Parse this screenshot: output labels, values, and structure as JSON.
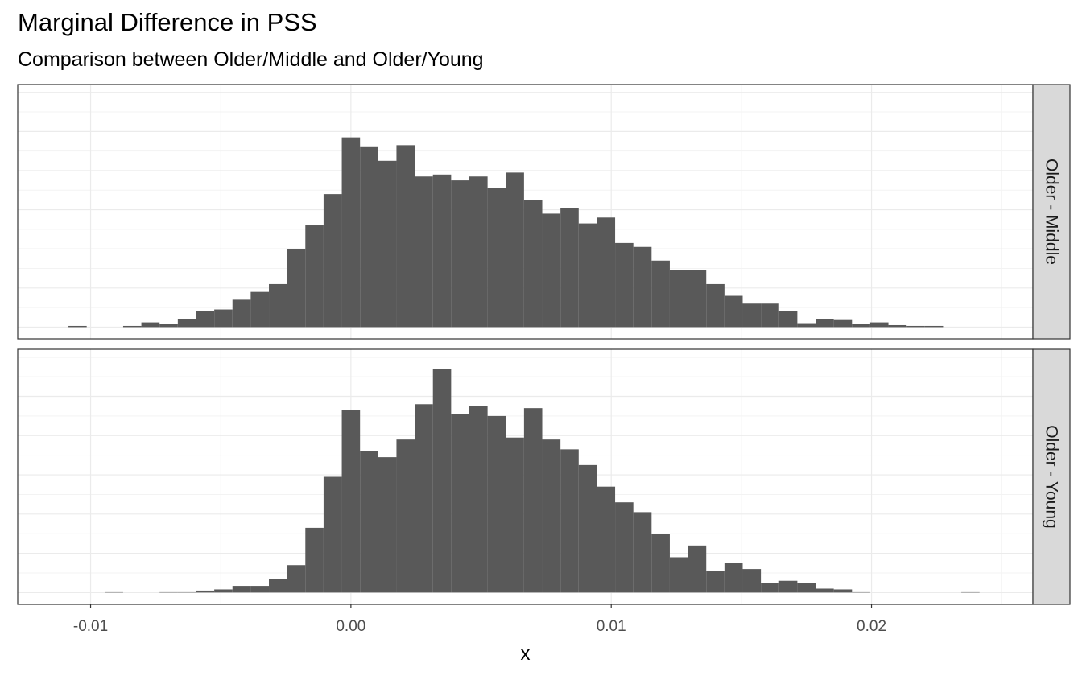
{
  "chart_data": {
    "type": "bar",
    "title": "Marginal Difference in PSS",
    "subtitle": "Comparison between Older/Middle and Older/Young",
    "xlabel": "x",
    "ylabel": "",
    "xlim": [
      -0.0128,
      0.0262
    ],
    "xticks": [
      -0.01,
      0.0,
      0.01,
      0.02
    ],
    "xtick_labels": [
      "-0.01",
      "0.00",
      "0.01",
      "0.02"
    ],
    "y_axis_labels_shown": false,
    "grid": true,
    "bin_width": 0.0007,
    "panels": [
      {
        "facet_label": "Older - Middle",
        "ylim": [
          -3,
          62
        ],
        "bins": [
          {
            "x": -0.0105,
            "count": 0.3
          },
          {
            "x": -0.0084,
            "count": 0.3
          },
          {
            "x": -0.0077,
            "count": 1.2
          },
          {
            "x": -0.007,
            "count": 0.9
          },
          {
            "x": -0.0063,
            "count": 2.0
          },
          {
            "x": -0.0056,
            "count": 4.0
          },
          {
            "x": -0.0049,
            "count": 4.5
          },
          {
            "x": -0.0042,
            "count": 7.0
          },
          {
            "x": -0.0035,
            "count": 9.0
          },
          {
            "x": -0.0028,
            "count": 11.0
          },
          {
            "x": -0.0021,
            "count": 20.0
          },
          {
            "x": -0.0014,
            "count": 26.0
          },
          {
            "x": -0.0007,
            "count": 34.0
          },
          {
            "x": 0.0,
            "count": 48.5
          },
          {
            "x": 0.0007,
            "count": 46.0
          },
          {
            "x": 0.0014,
            "count": 42.5
          },
          {
            "x": 0.0021,
            "count": 46.5
          },
          {
            "x": 0.0028,
            "count": 38.5
          },
          {
            "x": 0.0035,
            "count": 39.0
          },
          {
            "x": 0.0042,
            "count": 37.5
          },
          {
            "x": 0.0049,
            "count": 38.5
          },
          {
            "x": 0.0056,
            "count": 35.5
          },
          {
            "x": 0.0063,
            "count": 39.5
          },
          {
            "x": 0.007,
            "count": 32.5
          },
          {
            "x": 0.0077,
            "count": 29.0
          },
          {
            "x": 0.0084,
            "count": 30.5
          },
          {
            "x": 0.0091,
            "count": 26.5
          },
          {
            "x": 0.0098,
            "count": 28.0
          },
          {
            "x": 0.0105,
            "count": 21.5
          },
          {
            "x": 0.0112,
            "count": 20.5
          },
          {
            "x": 0.0119,
            "count": 17.0
          },
          {
            "x": 0.0126,
            "count": 14.5
          },
          {
            "x": 0.0133,
            "count": 14.5
          },
          {
            "x": 0.014,
            "count": 11.0
          },
          {
            "x": 0.0147,
            "count": 8.0
          },
          {
            "x": 0.0154,
            "count": 6.0
          },
          {
            "x": 0.0161,
            "count": 6.0
          },
          {
            "x": 0.0168,
            "count": 4.0
          },
          {
            "x": 0.0175,
            "count": 1.0
          },
          {
            "x": 0.0182,
            "count": 2.0
          },
          {
            "x": 0.0189,
            "count": 1.8
          },
          {
            "x": 0.0196,
            "count": 0.8
          },
          {
            "x": 0.0203,
            "count": 1.2
          },
          {
            "x": 0.021,
            "count": 0.5
          },
          {
            "x": 0.0217,
            "count": 0.3
          },
          {
            "x": 0.0224,
            "count": 0.3
          }
        ]
      },
      {
        "facet_label": "Older - Young",
        "ylim": [
          -3,
          62
        ],
        "bins": [
          {
            "x": -0.0091,
            "count": 0.3
          },
          {
            "x": -0.007,
            "count": 0.3
          },
          {
            "x": -0.0063,
            "count": 0.3
          },
          {
            "x": -0.0056,
            "count": 0.5
          },
          {
            "x": -0.0049,
            "count": 0.8
          },
          {
            "x": -0.0042,
            "count": 1.7
          },
          {
            "x": -0.0035,
            "count": 1.7
          },
          {
            "x": -0.0028,
            "count": 3.5
          },
          {
            "x": -0.0021,
            "count": 7.0
          },
          {
            "x": -0.0014,
            "count": 16.5
          },
          {
            "x": -0.0007,
            "count": 29.5
          },
          {
            "x": 0.0,
            "count": 46.5
          },
          {
            "x": 0.0007,
            "count": 36.0
          },
          {
            "x": 0.0014,
            "count": 34.5
          },
          {
            "x": 0.0021,
            "count": 39.0
          },
          {
            "x": 0.0028,
            "count": 48.0
          },
          {
            "x": 0.0035,
            "count": 57.0
          },
          {
            "x": 0.0042,
            "count": 45.5
          },
          {
            "x": 0.0049,
            "count": 47.5
          },
          {
            "x": 0.0056,
            "count": 45.0
          },
          {
            "x": 0.0063,
            "count": 39.5
          },
          {
            "x": 0.007,
            "count": 47.0
          },
          {
            "x": 0.0077,
            "count": 39.0
          },
          {
            "x": 0.0084,
            "count": 36.5
          },
          {
            "x": 0.0091,
            "count": 32.5
          },
          {
            "x": 0.0098,
            "count": 27.0
          },
          {
            "x": 0.0105,
            "count": 23.0
          },
          {
            "x": 0.0112,
            "count": 20.5
          },
          {
            "x": 0.0119,
            "count": 15.0
          },
          {
            "x": 0.0126,
            "count": 9.0
          },
          {
            "x": 0.0133,
            "count": 12.0
          },
          {
            "x": 0.014,
            "count": 5.5
          },
          {
            "x": 0.0147,
            "count": 7.5
          },
          {
            "x": 0.0154,
            "count": 6.0
          },
          {
            "x": 0.0161,
            "count": 2.5
          },
          {
            "x": 0.0168,
            "count": 3.0
          },
          {
            "x": 0.0175,
            "count": 2.5
          },
          {
            "x": 0.0182,
            "count": 1.0
          },
          {
            "x": 0.0189,
            "count": 0.8
          },
          {
            "x": 0.0196,
            "count": 0.3
          },
          {
            "x": 0.0238,
            "count": 0.3
          }
        ]
      }
    ],
    "colors": {
      "bar_fill": "#595959",
      "strip_fill": "#d9d9d9",
      "grid_major": "#ebebeb",
      "grid_minor": "#f3f3f3",
      "panel_border": "#333333",
      "tick_label": "#4d4d4d"
    }
  }
}
